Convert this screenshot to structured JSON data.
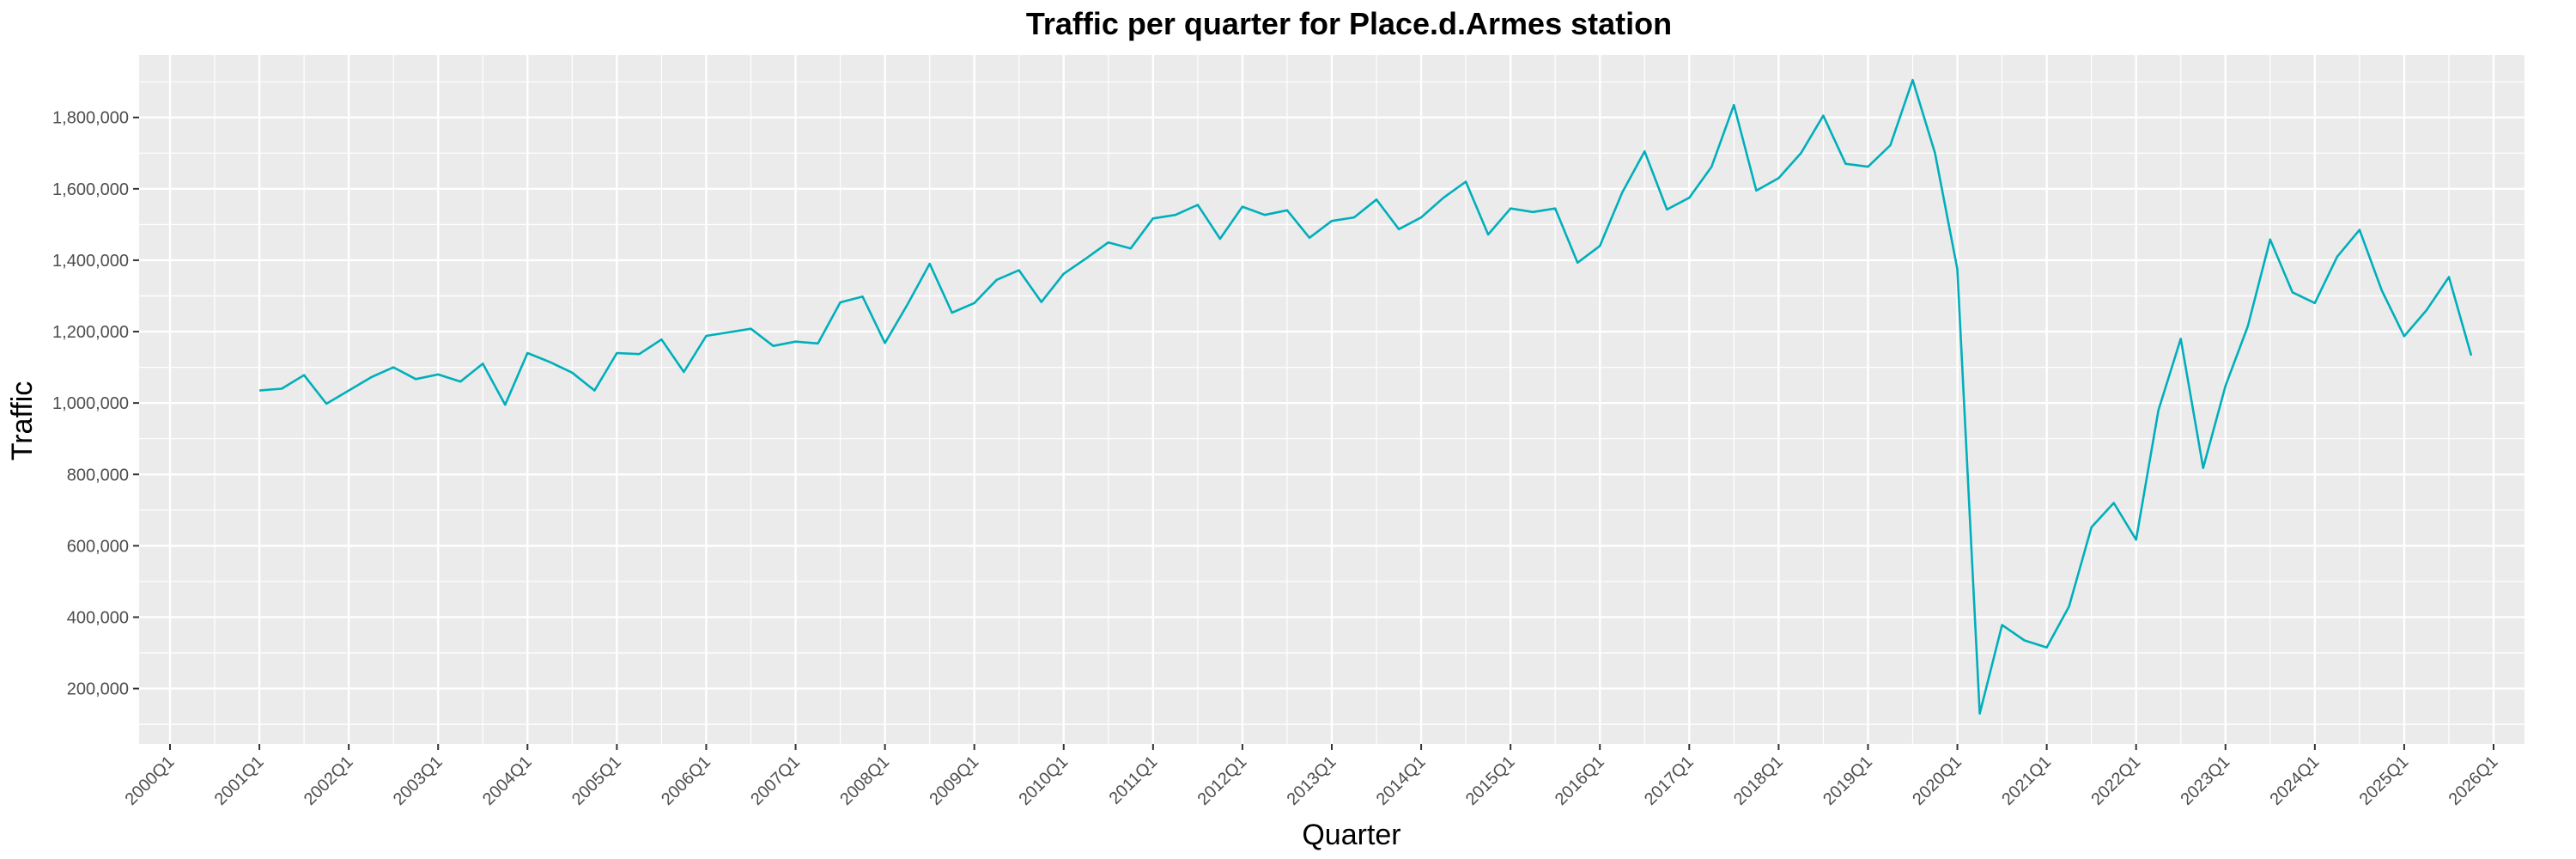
{
  "chart_data": {
    "type": "line",
    "title": "Traffic per quarter for Place.d.Armes station",
    "xlabel": "Quarter",
    "ylabel": "Traffic",
    "grid": true,
    "line_color": "#00AFBB",
    "panel_color": "#EBEBEB",
    "x_start_quarter": "2001Q1",
    "x_ticks": [
      "2000Q1",
      "2001Q1",
      "2002Q1",
      "2003Q1",
      "2004Q1",
      "2005Q1",
      "2006Q1",
      "2007Q1",
      "2008Q1",
      "2009Q1",
      "2010Q1",
      "2011Q1",
      "2012Q1",
      "2013Q1",
      "2014Q1",
      "2015Q1",
      "2016Q1",
      "2017Q1",
      "2018Q1",
      "2019Q1",
      "2020Q1",
      "2021Q1",
      "2022Q1",
      "2023Q1",
      "2024Q1",
      "2025Q1",
      "2026Q1"
    ],
    "y_ticks": [
      200000,
      400000,
      600000,
      800000,
      1000000,
      1200000,
      1400000,
      1600000,
      1800000
    ],
    "y_tick_labels": [
      "200,000",
      "400,000",
      "600,000",
      "800,000",
      "1,000,000",
      "1,200,000",
      "1,400,000",
      "1,600,000",
      "1,800,000"
    ],
    "ylim": [
      45000,
      1975000
    ],
    "values": [
      1035000,
      1040000,
      1078000,
      998000,
      1035000,
      1072000,
      1100000,
      1067000,
      1080000,
      1060000,
      1110000,
      995000,
      1140000,
      1115000,
      1085000,
      1035000,
      1140000,
      1137000,
      1178000,
      1087000,
      1188000,
      1198000,
      1208000,
      1160000,
      1172000,
      1167000,
      1282000,
      1298000,
      1168000,
      1275000,
      1390000,
      1253000,
      1280000,
      1345000,
      1372000,
      1283000,
      1362000,
      1405000,
      1450000,
      1433000,
      1517000,
      1527000,
      1555000,
      1460000,
      1550000,
      1527000,
      1540000,
      1463000,
      1510000,
      1520000,
      1570000,
      1487000,
      1520000,
      1575000,
      1620000,
      1472000,
      1545000,
      1535000,
      1545000,
      1393000,
      1440000,
      1590000,
      1705000,
      1542000,
      1575000,
      1662000,
      1835000,
      1595000,
      1630000,
      1700000,
      1805000,
      1670000,
      1662000,
      1722000,
      1905000,
      1700000,
      1375000,
      130000,
      378000,
      335000,
      315000,
      430000,
      652000,
      720000,
      617000,
      980000,
      1180000,
      818000,
      1048000,
      1215000,
      1458000,
      1310000,
      1280000,
      1410000,
      1485000,
      1315000,
      1187000,
      1260000,
      1353000,
      1133000
    ]
  }
}
